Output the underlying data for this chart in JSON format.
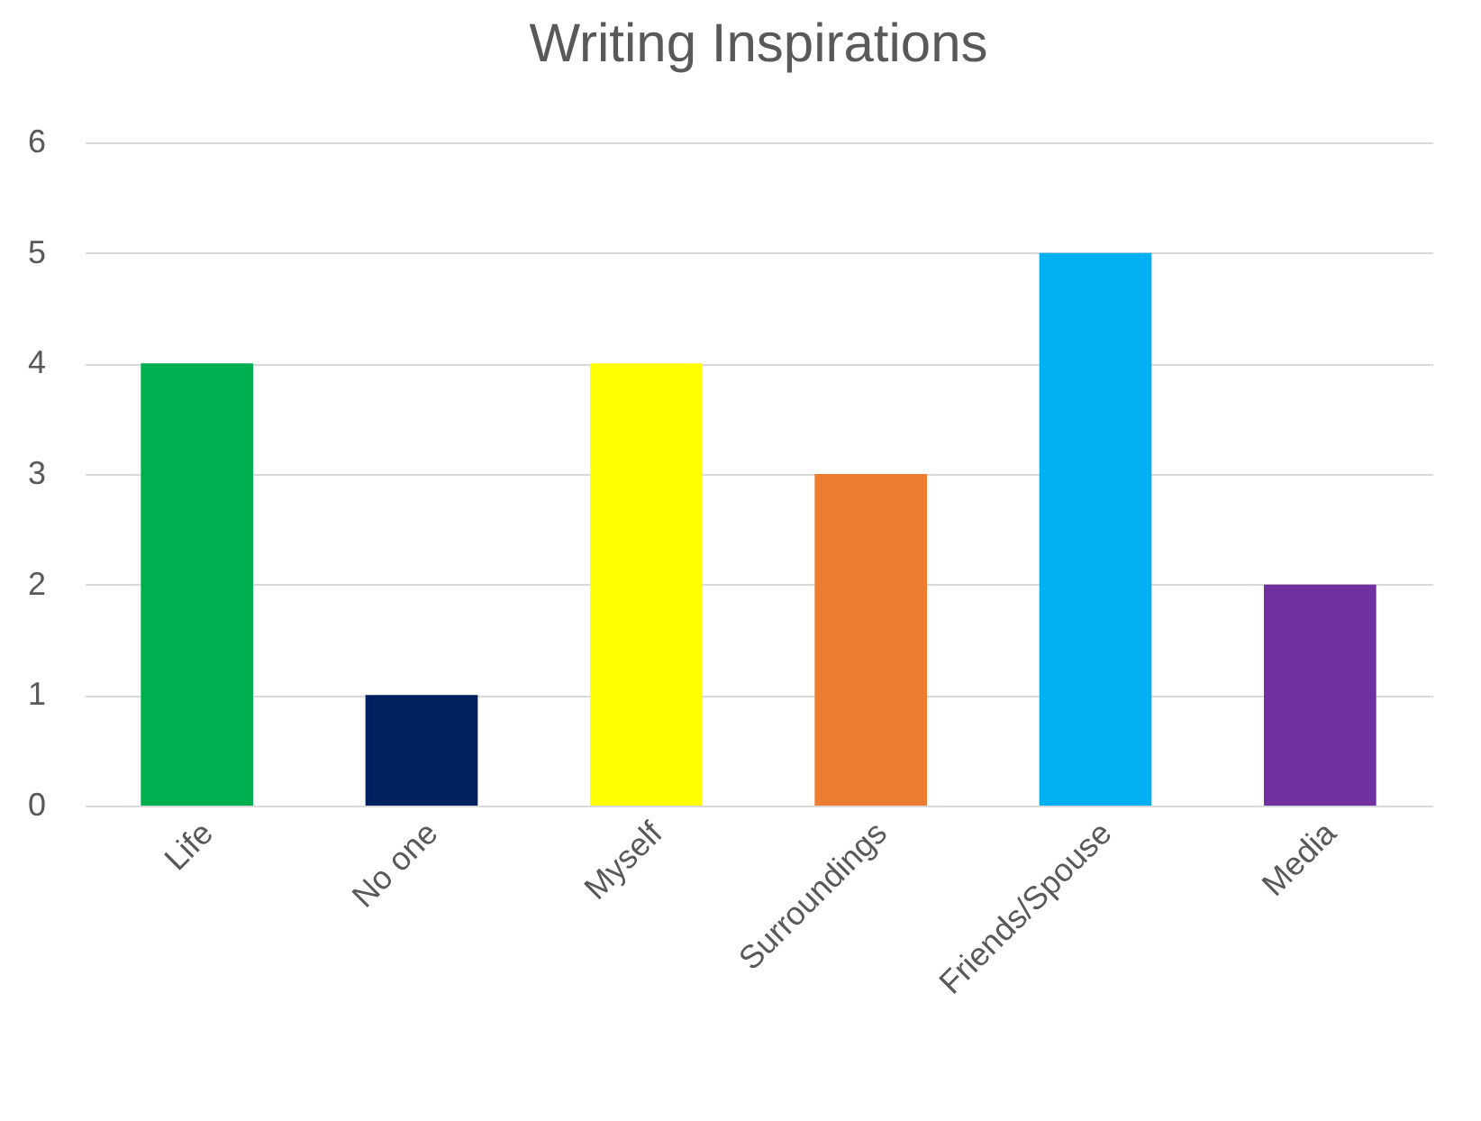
{
  "chart_data": {
    "type": "bar",
    "title": "Writing Inspirations",
    "categories": [
      "Life",
      "No one",
      "Myself",
      "Surroundings",
      "Friends/Spouse",
      "Media"
    ],
    "values": [
      4,
      1,
      4,
      3,
      5,
      2
    ],
    "colors": [
      "#00b050",
      "#002060",
      "#ffff00",
      "#ed7d31",
      "#00b0f0",
      "#7030a0"
    ],
    "ylim": [
      0,
      6
    ],
    "yticks": [
      0,
      1,
      2,
      3,
      4,
      5,
      6
    ],
    "grid": "y"
  }
}
